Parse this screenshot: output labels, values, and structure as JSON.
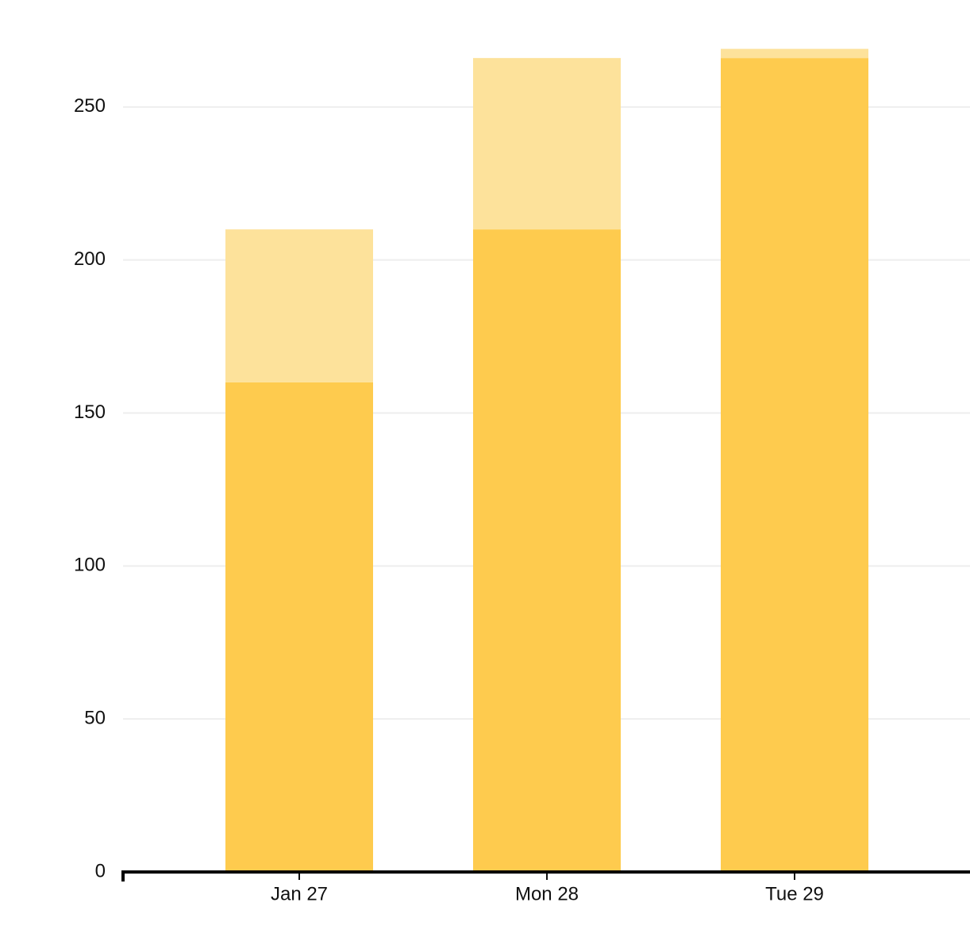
{
  "chart_data": {
    "type": "stacked_bar",
    "categories": [
      "Jan 27",
      "Mon 28",
      "Tue 29"
    ],
    "series": [
      {
        "color": "#fecb4e",
        "values": [
          160,
          210,
          266
        ]
      },
      {
        "color": "#fde29b",
        "values": [
          50,
          56,
          3
        ]
      }
    ],
    "ylim": [
      0,
      272
    ],
    "yticks": [
      0,
      50,
      100,
      150,
      200,
      250
    ],
    "grid": true
  }
}
